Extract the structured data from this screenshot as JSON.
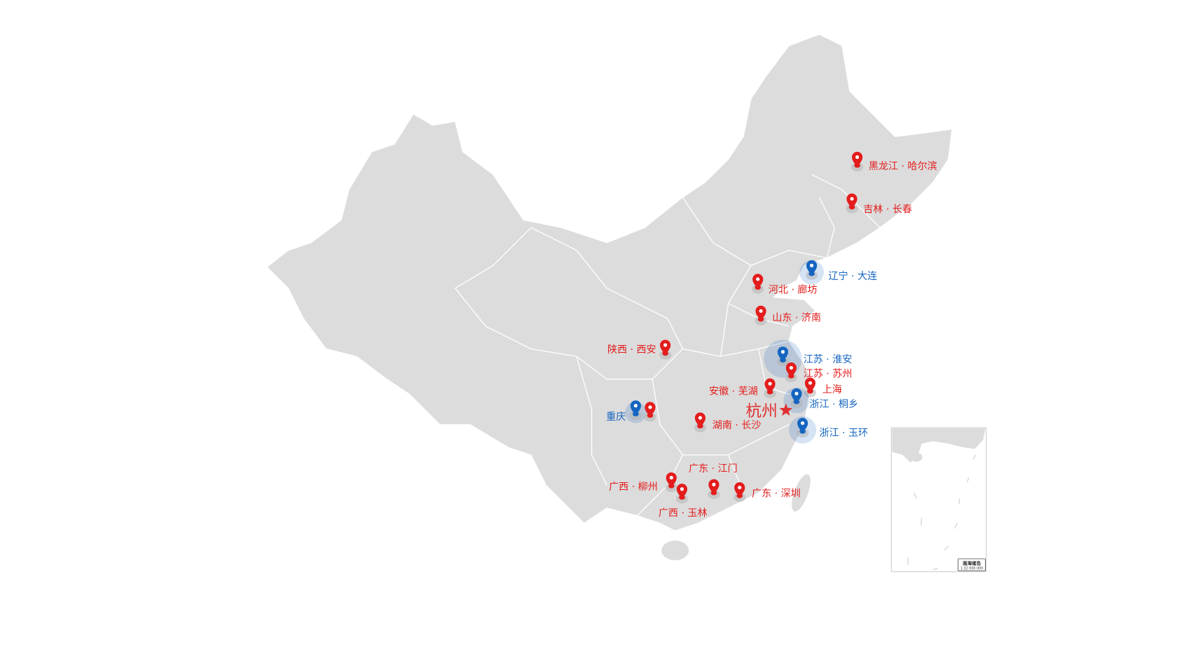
{
  "colors": {
    "land": "#dcdcdc",
    "border": "#ffffff",
    "red": "#e41c1c",
    "blue": "#1565c0",
    "hangzhou": "#e03030"
  },
  "hq": {
    "label": "杭州",
    "icon": "star-icon"
  },
  "markers": [
    {
      "label": "黑龙江 · 哈尔滨",
      "type": "red"
    },
    {
      "label": "吉林 · 长春",
      "type": "red"
    },
    {
      "label": "辽宁 · 大连",
      "type": "blue"
    },
    {
      "label": "河北 · 廊坊",
      "type": "red"
    },
    {
      "label": "山东 · 济南",
      "type": "red"
    },
    {
      "label": "陕西 · 西安",
      "type": "red"
    },
    {
      "label": "江苏 · 淮安",
      "type": "blue"
    },
    {
      "label": "江苏 · 苏州",
      "type": "red"
    },
    {
      "label": "上海",
      "type": "red"
    },
    {
      "label": "安徽 · 芜湖",
      "type": "red"
    },
    {
      "label": "浙江 · 桐乡",
      "type": "blue"
    },
    {
      "label": "浙江 · 玉环",
      "type": "blue"
    },
    {
      "label": "重庆",
      "type": "blue"
    },
    {
      "label": "",
      "type": "red"
    },
    {
      "label": "湖南 · 长沙",
      "type": "red"
    },
    {
      "label": "广东 · 江门",
      "type": "red"
    },
    {
      "label": "广西 · 柳州",
      "type": "red"
    },
    {
      "label": "广西 · 玉林",
      "type": "red"
    },
    {
      "label": "广东 · 深圳",
      "type": "red"
    }
  ],
  "inset": {
    "title": "南海诸岛",
    "scale": "1:32 000 000"
  }
}
